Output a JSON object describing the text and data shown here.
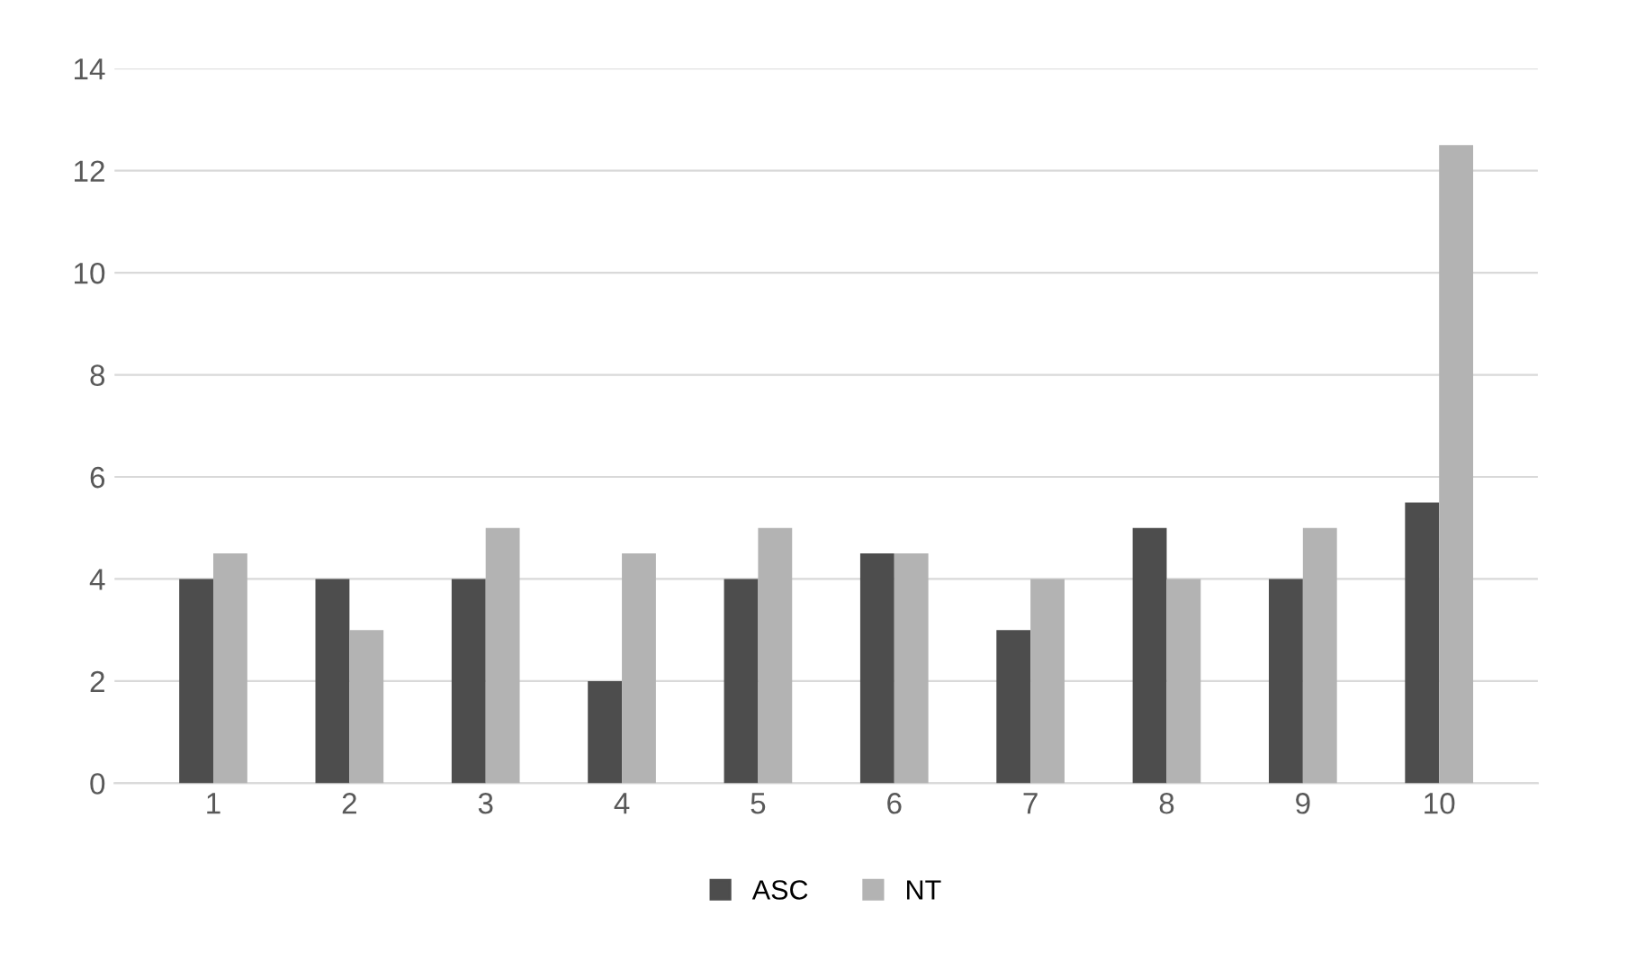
{
  "chart_data": {
    "type": "bar",
    "categories": [
      "1",
      "2",
      "3",
      "4",
      "5",
      "6",
      "7",
      "8",
      "9",
      "10"
    ],
    "series": [
      {
        "name": "ASC",
        "color": "#4d4d4d",
        "values": [
          4,
          4,
          4,
          2,
          4,
          4.5,
          3,
          5,
          4,
          5.5
        ]
      },
      {
        "name": "NT",
        "color": "#b3b3b3",
        "values": [
          4.5,
          3,
          5,
          4.5,
          5,
          4.5,
          4,
          4,
          5,
          12.5
        ]
      }
    ],
    "ylim": [
      0,
      14
    ],
    "yticks": [
      0,
      2,
      4,
      6,
      8,
      10,
      12,
      14
    ],
    "grid": "y",
    "legend": "bottom"
  }
}
